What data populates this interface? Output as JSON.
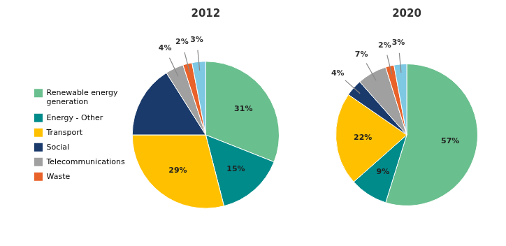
{
  "chart_data": [
    {
      "type": "pie",
      "title": "2012",
      "categories": [
        "Renewable energy\ngeneration",
        "Energy - Other",
        "Transport",
        "Social",
        "Telecommunications",
        "Waste",
        null
      ],
      "values": [
        31,
        15,
        29,
        16,
        4,
        2,
        3
      ],
      "colors": [
        "#6abf8e",
        "#008b8b",
        "#ffc000",
        "#1a3a6b",
        "#a0a0a0",
        "#e8622a",
        "#7ec8e3"
      ],
      "data_labels": true,
      "value_labels": [
        "31%",
        "15%",
        "29%",
        null,
        "4%",
        "2%",
        "3%"
      ],
      "legend": "left"
    },
    {
      "type": "pie",
      "title": "2020",
      "categories": [
        "Renewable energy\ngeneration",
        "Energy - Other",
        "Transport",
        "Social",
        "Telecommunications",
        "Waste",
        null
      ],
      "values": [
        57,
        9,
        22,
        4,
        7,
        2,
        3
      ],
      "colors": [
        "#6abf8e",
        "#008b8b",
        "#ffc000",
        "#1a3a6b",
        "#a0a0a0",
        "#e8622a",
        "#7ec8e3"
      ],
      "data_labels": true,
      "value_labels": [
        "57%",
        "9%",
        "22%",
        "4%",
        "7%",
        "2%",
        "3%"
      ]
    }
  ]
}
